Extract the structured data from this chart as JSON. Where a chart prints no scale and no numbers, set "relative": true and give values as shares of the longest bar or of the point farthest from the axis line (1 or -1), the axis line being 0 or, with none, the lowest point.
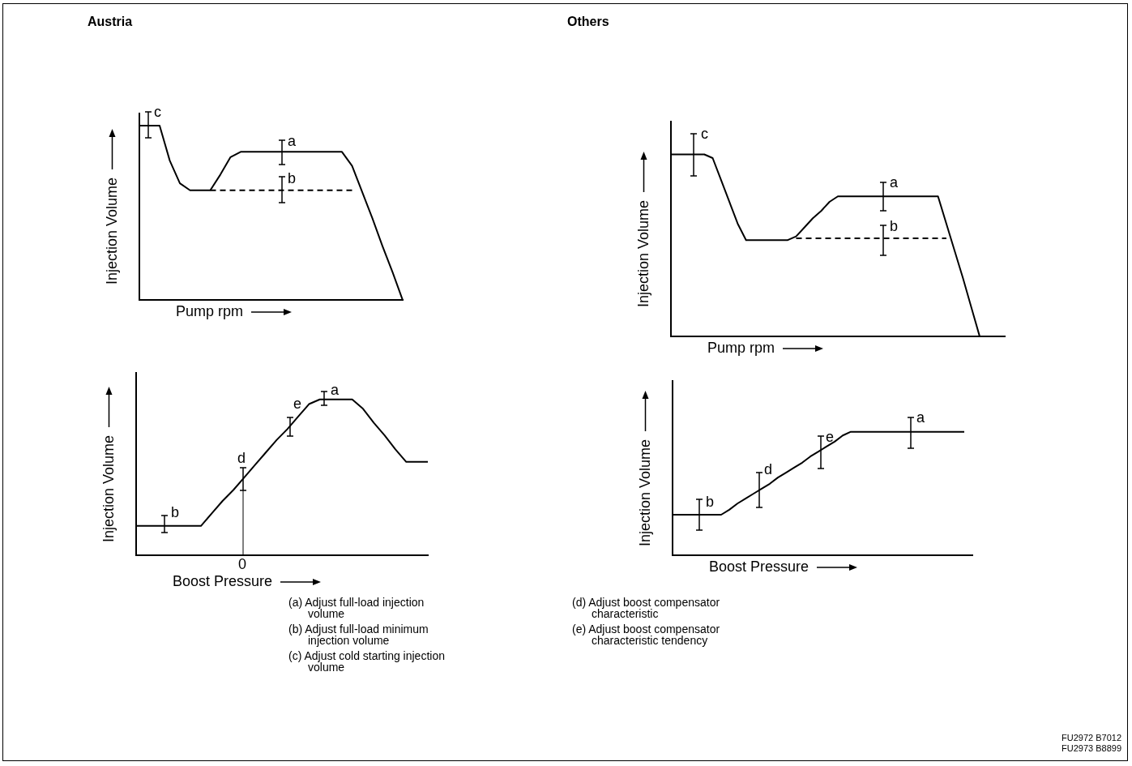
{
  "chart_data": [
    {
      "type": "line",
      "title": "Austria",
      "xlabel": "Pump rpm",
      "ylabel": "Injection Volume",
      "relative": true,
      "annotations": [
        "c",
        "a",
        "b"
      ],
      "categories": [
        null,
        null,
        null,
        null,
        null,
        null,
        null,
        null,
        null,
        null,
        null,
        null,
        null,
        null,
        null,
        null,
        null,
        null,
        null,
        null,
        null,
        null,
        null,
        null,
        null,
        null,
        null
      ],
      "series": [
        {
          "color": "#000000",
          "values": [
            1,
            1,
            1,
            0.8,
            0.67,
            0.63,
            0.63,
            0.63,
            0.72,
            0.82,
            0.85,
            0.85,
            0.85,
            0.85,
            0.85,
            0.85,
            0.85,
            0.85,
            0.85,
            0.85,
            0.85,
            0.77,
            0.62,
            0.47,
            0.31,
            0.16,
            0
          ]
        },
        {
          "color": "#000000",
          "line_style": "dashed",
          "values": [
            null,
            null,
            null,
            null,
            null,
            null,
            null,
            0.63,
            0.63,
            0.63,
            0.63,
            0.63,
            0.63,
            0.63,
            0.63,
            0.63,
            0.63,
            0.63,
            0.63,
            0.63,
            0.63,
            0.63,
            null,
            null,
            null,
            null,
            null
          ]
        }
      ]
    },
    {
      "type": "line",
      "title": "Others",
      "xlabel": "Pump rpm",
      "ylabel": "Injection Volume",
      "relative": true,
      "annotations": [
        "c",
        "a",
        "b"
      ],
      "categories": [
        null,
        null,
        null,
        null,
        null,
        null,
        null,
        null,
        null,
        null,
        null,
        null,
        null,
        null,
        null,
        null,
        null,
        null,
        null,
        null,
        null,
        null,
        null,
        null,
        null,
        null,
        null,
        null,
        null,
        null,
        null,
        null,
        null,
        null,
        null,
        null,
        null,
        null,
        null,
        null,
        null
      ],
      "series": [
        {
          "color": "#000000",
          "values": [
            1,
            1,
            1,
            1,
            1,
            0.98,
            0.86,
            0.74,
            0.62,
            0.53,
            0.53,
            0.53,
            0.53,
            0.53,
            0.53,
            0.55,
            0.6,
            0.65,
            0.69,
            0.74,
            0.77,
            0.77,
            0.77,
            0.77,
            0.77,
            0.77,
            0.77,
            0.77,
            0.77,
            0.77,
            0.77,
            0.77,
            0.77,
            0.62,
            0.47,
            0.32,
            0.16,
            0,
            null,
            null,
            null
          ]
        },
        {
          "color": "#000000",
          "line_style": "dashed",
          "values": [
            null,
            null,
            null,
            null,
            null,
            null,
            null,
            null,
            null,
            null,
            null,
            null,
            null,
            null,
            null,
            0.54,
            0.54,
            0.54,
            0.54,
            0.54,
            0.54,
            0.54,
            0.54,
            0.54,
            0.54,
            0.54,
            0.54,
            0.54,
            0.54,
            0.54,
            0.54,
            0.54,
            0.54,
            0.54,
            null,
            null,
            null,
            null,
            null,
            null,
            null
          ]
        }
      ]
    },
    {
      "type": "line",
      "xlabel": "Boost Pressure",
      "ylabel": "Injection Volume",
      "relative": true,
      "annotations": [
        "b",
        "d",
        "e",
        "a",
        "0"
      ],
      "categories": [
        null,
        null,
        null,
        null,
        null,
        null,
        null,
        null,
        null,
        null,
        null,
        null,
        null,
        null,
        null,
        null,
        null,
        null,
        null,
        null,
        null,
        null,
        null,
        null,
        null,
        null,
        null,
        null
      ],
      "series": [
        {
          "color": "#000000",
          "values": [
            0.19,
            0.19,
            0.19,
            0.19,
            0.19,
            0.19,
            0.19,
            0.27,
            0.35,
            0.42,
            0.5,
            0.58,
            0.66,
            0.74,
            0.81,
            0.89,
            0.97,
            1,
            1,
            1,
            1,
            0.94,
            0.85,
            0.77,
            0.68,
            0.6,
            0.6,
            0.6
          ]
        }
      ]
    },
    {
      "type": "line",
      "xlabel": "Boost Pressure",
      "ylabel": "Injection Volume",
      "relative": true,
      "annotations": [
        "b",
        "d",
        "e",
        "a"
      ],
      "categories": [
        null,
        null,
        null,
        null,
        null,
        null,
        null,
        null,
        null,
        null,
        null,
        null,
        null,
        null,
        null,
        null,
        null,
        null,
        null,
        null,
        null,
        null,
        null,
        null,
        null,
        null,
        null,
        null,
        null,
        null,
        null,
        null,
        null,
        null,
        null,
        null,
        null,
        null
      ],
      "series": [
        {
          "color": "#000000",
          "values": [
            0.33,
            0.33,
            0.33,
            0.33,
            0.33,
            0.33,
            0.33,
            0.37,
            0.42,
            0.46,
            0.5,
            0.54,
            0.58,
            0.63,
            0.67,
            0.71,
            0.75,
            0.8,
            0.84,
            0.88,
            0.92,
            0.97,
            1,
            1,
            1,
            1,
            1,
            1,
            1,
            1,
            1,
            1,
            1,
            1,
            1,
            1,
            1,
            null
          ]
        }
      ]
    },
    {
      "type": "other",
      "annotations": [
        "(a) Adjust full-load injection volume",
        "(b) Adjust full-load minimum injection volume",
        "(c) Adjust cold starting injection volume",
        "(d) Adjust boost compensator characteristic",
        "(e) Adjust boost compensator characteristic tendency",
        "FU2972 B7012",
        "FU2973 B8899"
      ]
    }
  ]
}
